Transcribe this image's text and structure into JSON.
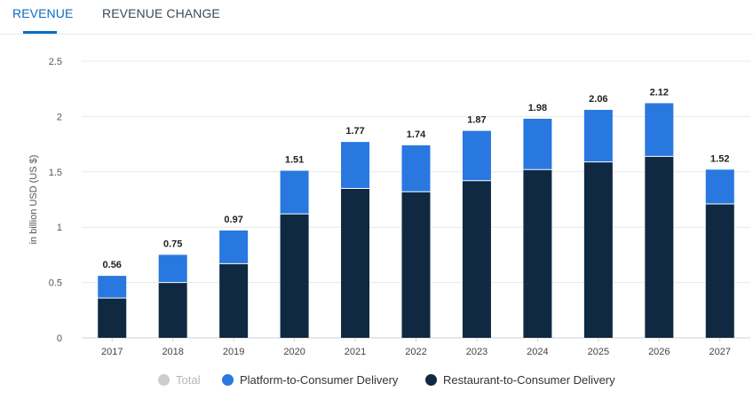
{
  "tabs": {
    "revenue": "REVENUE",
    "revenue_change": "REVENUE CHANGE"
  },
  "legend": {
    "total": "Total",
    "platform": "Platform-to-Consumer Delivery",
    "restaurant": "Restaurant-to-Consumer Delivery"
  },
  "colors": {
    "platform": "#2878e0",
    "restaurant": "#0f2942",
    "total_disabled": "#cccccc",
    "accent": "#0b6cc3"
  },
  "chart_data": {
    "type": "bar",
    "stacked": true,
    "ylabel": "in billion USD (US $)",
    "xlabel": "",
    "ylim": [
      0,
      2.5
    ],
    "yticks": [
      0,
      0.5,
      1,
      1.5,
      2,
      2.5
    ],
    "ytick_labels": [
      "0",
      "0.5",
      "1",
      "1.5",
      "2",
      "2.5"
    ],
    "categories": [
      "2017",
      "2018",
      "2019",
      "2020",
      "2021",
      "2022",
      "2023",
      "2024",
      "2025",
      "2026",
      "2027"
    ],
    "series": [
      {
        "name": "Restaurant-to-Consumer Delivery",
        "values": [
          0.36,
          0.5,
          0.67,
          1.12,
          1.35,
          1.32,
          1.42,
          1.52,
          1.59,
          1.64,
          1.21
        ]
      },
      {
        "name": "Platform-to-Consumer Delivery",
        "values": [
          0.2,
          0.25,
          0.3,
          0.39,
          0.42,
          0.42,
          0.45,
          0.46,
          0.47,
          0.48,
          0.31
        ]
      }
    ],
    "totals": [
      0.56,
      0.75,
      0.97,
      1.51,
      1.77,
      1.74,
      1.87,
      1.98,
      2.06,
      2.12,
      1.52
    ],
    "total_labels": [
      "0.56",
      "0.75",
      "0.97",
      "1.51",
      "1.77",
      "1.74",
      "1.87",
      "1.98",
      "2.06",
      "2.12",
      "1.52"
    ],
    "grid": true,
    "legend_position": "bottom"
  }
}
